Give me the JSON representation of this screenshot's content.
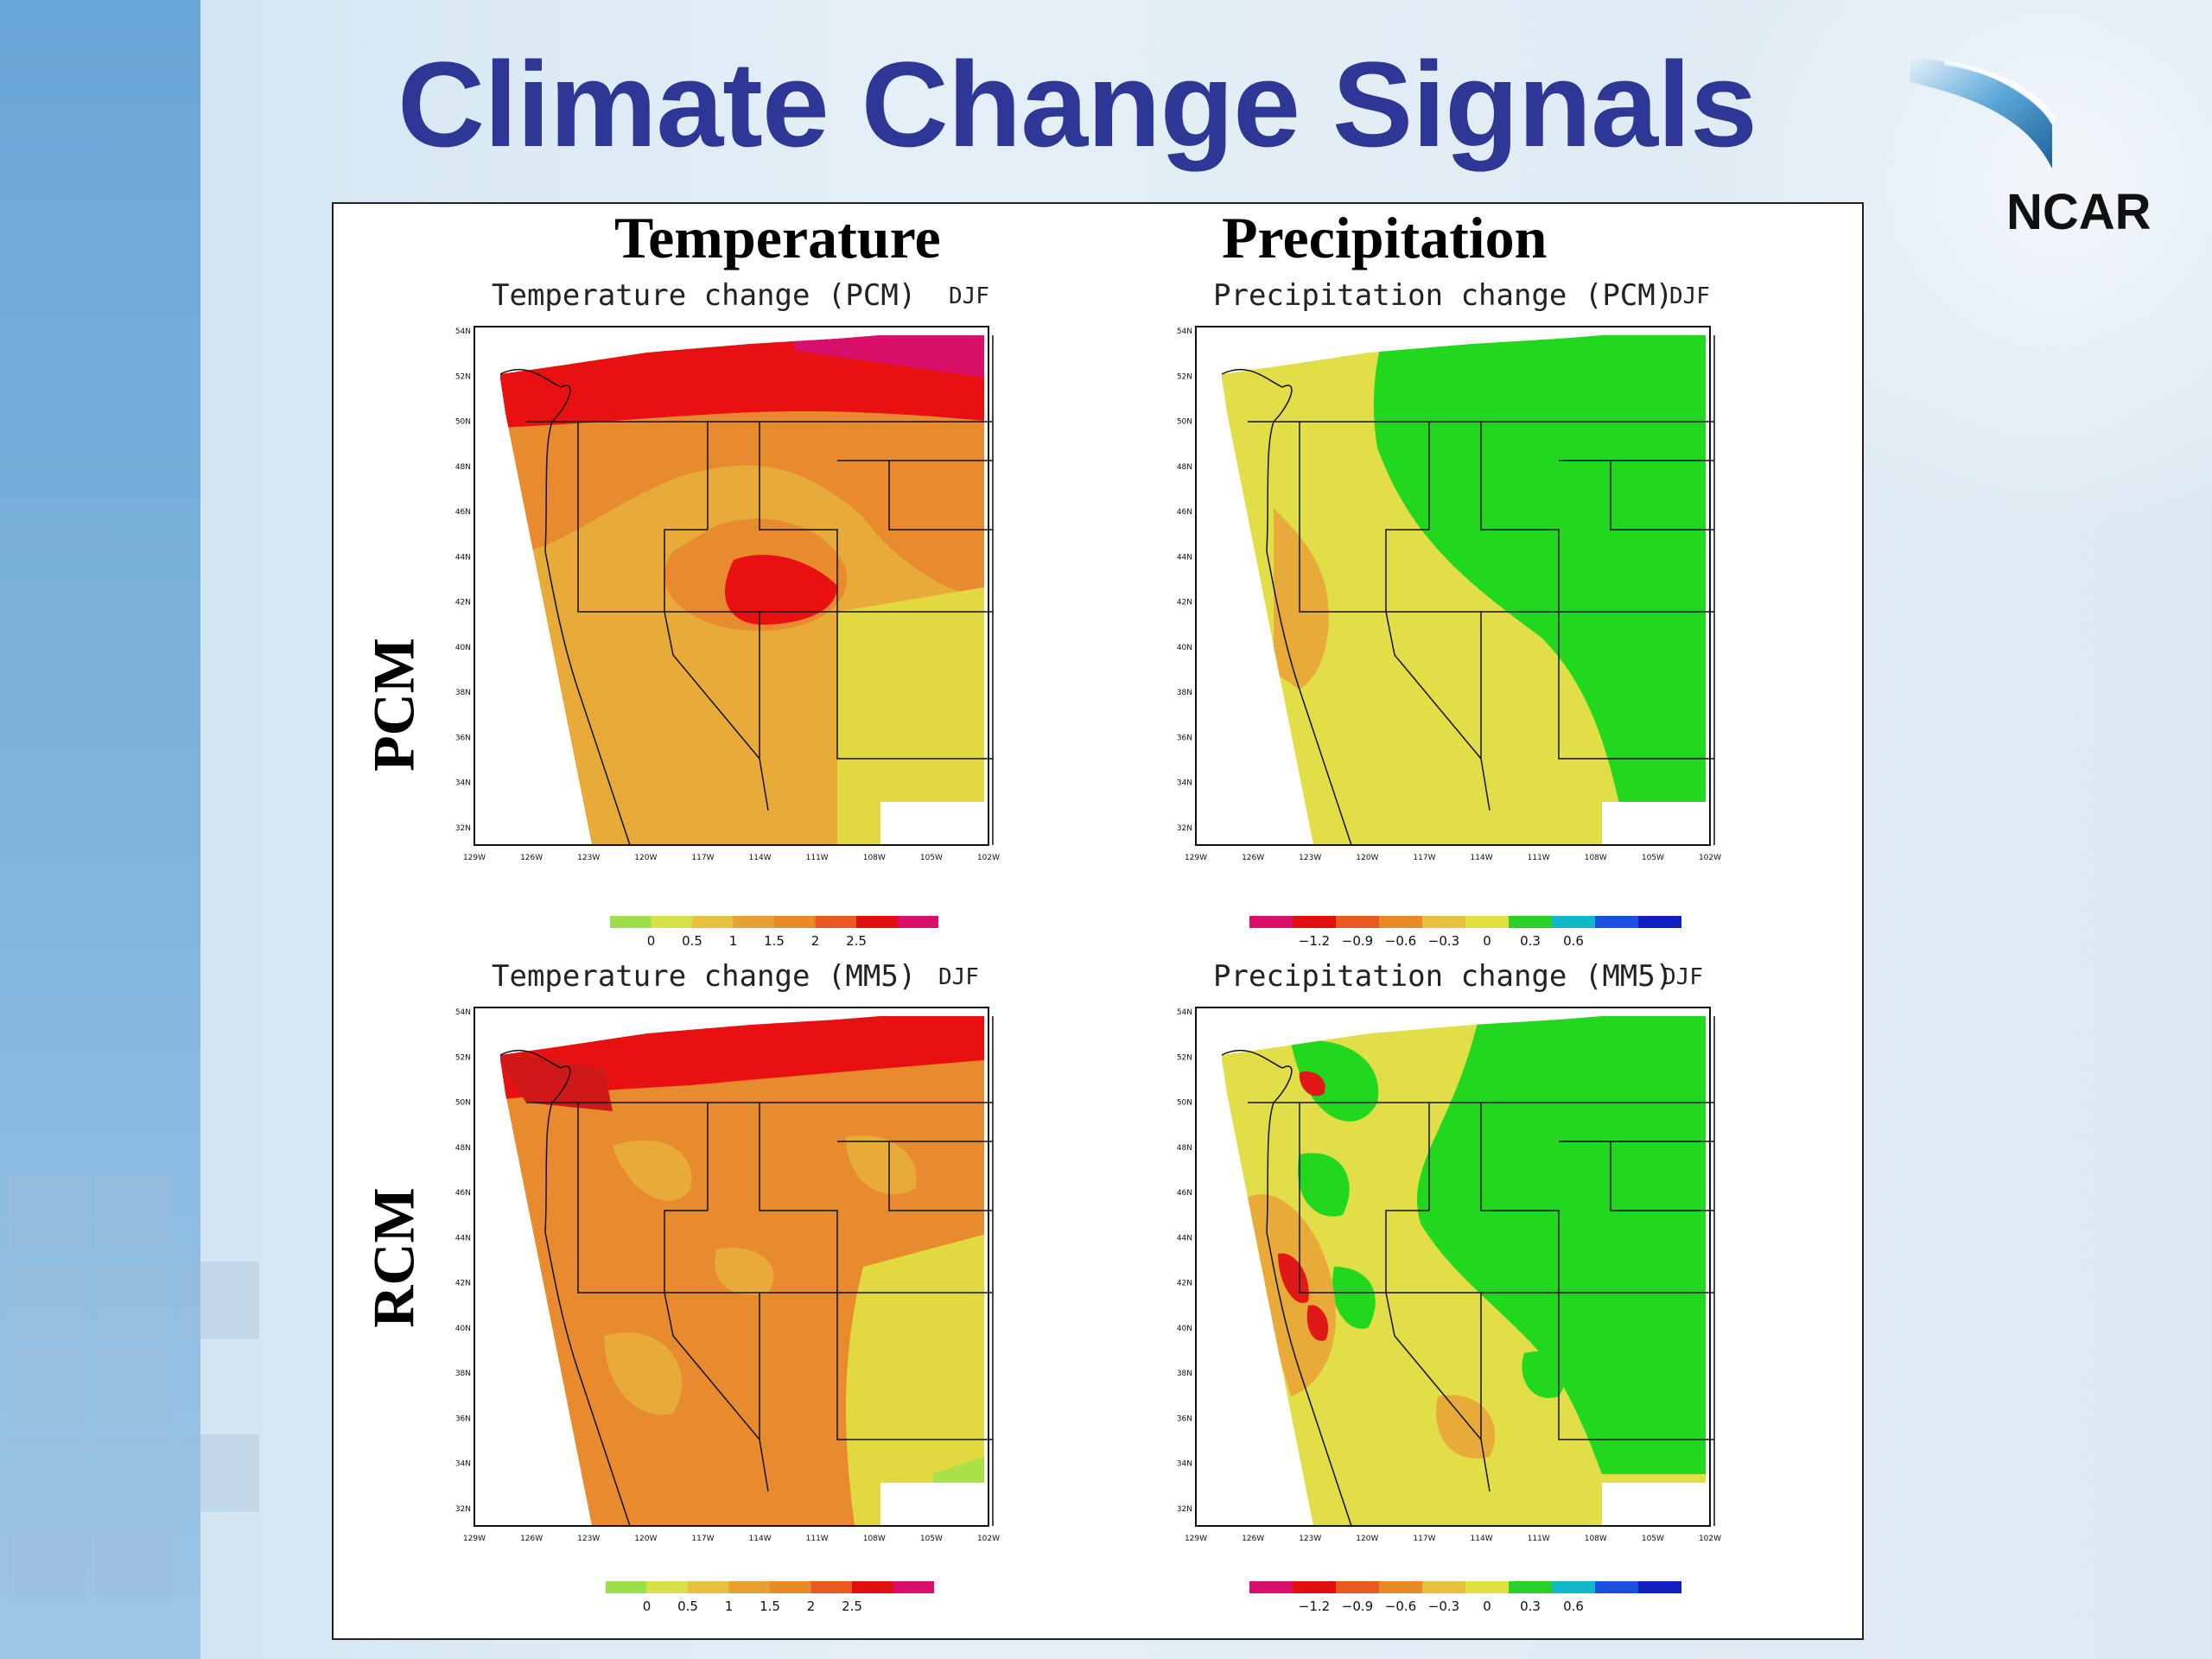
{
  "slide": {
    "title": "Climate Change Signals",
    "logo_text": "NCAR"
  },
  "columns": {
    "temperature": "Temperature",
    "precipitation": "Precipitation"
  },
  "rows": {
    "pcm": "PCM",
    "rcm": "RCM"
  },
  "maps": {
    "temp_pcm": {
      "title": "Temperature change (PCM)",
      "season": "DJF"
    },
    "precip_pcm": {
      "title": "Precipitation change (PCM)",
      "season": "DJF"
    },
    "temp_mm5": {
      "title": "Temperature change (MM5)",
      "season": "DJF"
    },
    "precip_mm5": {
      "title": "Precipitation change (MM5)",
      "season": "DJF"
    }
  },
  "axes": {
    "lat_ticks": [
      "54N",
      "52N",
      "50N",
      "48N",
      "46N",
      "44N",
      "42N",
      "40N",
      "38N",
      "36N",
      "34N",
      "32N"
    ],
    "lon_ticks": [
      "129W",
      "126W",
      "123W",
      "120W",
      "117W",
      "114W",
      "111W",
      "108W",
      "105W",
      "102W"
    ]
  },
  "colorbars": {
    "temperature": {
      "labels": [
        "0",
        "0.5",
        "1",
        "1.5",
        "2",
        "2.5"
      ],
      "colors": [
        "#9be04a",
        "#d8e04a",
        "#e8c040",
        "#e8a032",
        "#e88a28",
        "#e85a20",
        "#e01010",
        "#d8106a"
      ]
    },
    "precipitation": {
      "labels": [
        "−1.2",
        "−0.9",
        "−0.6",
        "−0.3",
        "0",
        "0.3",
        "0.6"
      ],
      "colors": [
        "#d8106a",
        "#e01010",
        "#e85a20",
        "#e88a28",
        "#e8c040",
        "#e0e040",
        "#28d028",
        "#10b8c8",
        "#1e50e0",
        "#1020c0"
      ]
    }
  },
  "palette": {
    "title_blue": "#2e3696",
    "t_red": "#e81010",
    "t_orange": "#e88a2e",
    "t_lightorange": "#e8aa38",
    "t_yellow": "#e2d840",
    "t_magenta": "#d8106a",
    "p_green": "#22d81e",
    "p_yellow": "#e2de48",
    "p_orange": "#e8aa38",
    "p_red": "#e01818"
  }
}
